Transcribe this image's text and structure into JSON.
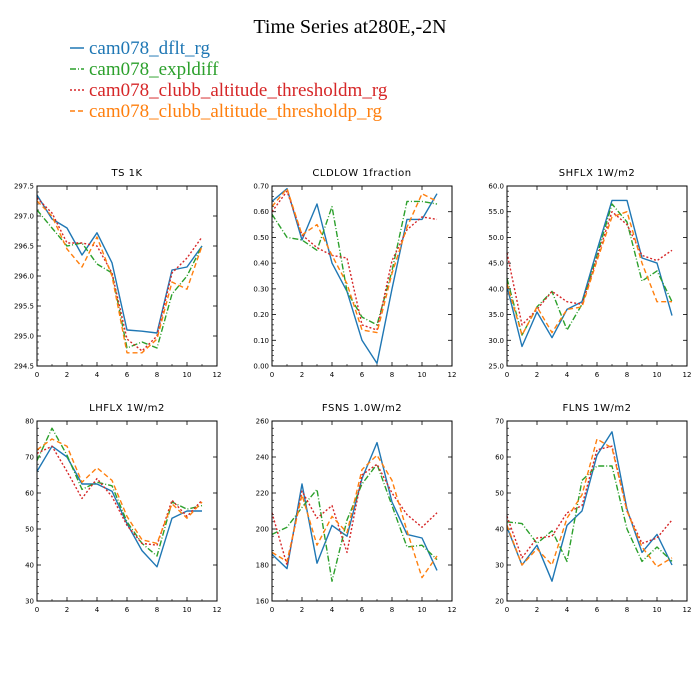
{
  "figure_title": "Time Series at280E,-2N",
  "legend": [
    {
      "label": "cam078_dflt_rg",
      "color": "#1f77b4",
      "dash": "solid"
    },
    {
      "label": "cam078_expldiff",
      "color": "#2ca02c",
      "dash": "dashdot"
    },
    {
      "label": "cam078_clubb_altitude_thresholdm_rg",
      "color": "#d62728",
      "dash": "dotted"
    },
    {
      "label": "cam078_clubb_altitude_thresholdp_rg",
      "color": "#ff7f0e",
      "dash": "dashed"
    }
  ],
  "chart_data": [
    {
      "type": "line",
      "title": "TS   1K",
      "x": [
        0,
        1,
        2,
        3,
        4,
        5,
        6,
        7,
        8,
        9,
        10,
        11
      ],
      "xlim": [
        0,
        12
      ],
      "xticks": [
        0,
        2,
        4,
        6,
        8,
        10,
        12
      ],
      "ylim": [
        294.5,
        297.5
      ],
      "yticks": [
        294.5,
        295.0,
        295.5,
        296.0,
        296.5,
        297.0,
        297.5
      ],
      "yticklabels": [
        "294.5",
        "295.0",
        "295.5",
        "296.0",
        "296.5",
        "297.0",
        "297.5"
      ],
      "series": [
        {
          "name": "cam078_dflt_rg",
          "values": [
            297.35,
            296.95,
            296.8,
            296.35,
            296.72,
            296.22,
            295.1,
            295.08,
            295.05,
            296.1,
            296.15,
            296.5
          ]
        },
        {
          "name": "cam078_expldiff",
          "values": [
            297.1,
            296.8,
            296.5,
            296.55,
            296.2,
            296.05,
            294.8,
            294.9,
            294.8,
            295.7,
            296.0,
            296.5
          ]
        },
        {
          "name": "cam078_clubb_altitude_thresholdm_rg",
          "values": [
            297.3,
            297.05,
            296.55,
            296.55,
            296.5,
            296.05,
            294.95,
            294.75,
            295.0,
            296.05,
            296.3,
            296.65
          ]
        },
        {
          "name": "cam078_clubb_altitude_thresholdp_rg",
          "values": [
            297.25,
            297.0,
            296.45,
            296.15,
            296.65,
            296.0,
            294.72,
            294.72,
            294.95,
            295.9,
            295.78,
            296.5
          ]
        }
      ]
    },
    {
      "type": "line",
      "title": "CLDLOW   1fraction",
      "x": [
        0,
        1,
        2,
        3,
        4,
        5,
        6,
        7,
        8,
        9,
        10,
        11
      ],
      "xlim": [
        0,
        12
      ],
      "xticks": [
        0,
        2,
        4,
        6,
        8,
        10,
        12
      ],
      "ylim": [
        0.0,
        0.7
      ],
      "yticks": [
        0,
        0.1,
        0.2,
        0.3,
        0.4,
        0.5,
        0.6,
        0.7
      ],
      "yticklabels": [
        "0.00",
        "0.10",
        "0.20",
        "0.30",
        "0.40",
        "0.50",
        "0.60",
        "0.70"
      ],
      "series": [
        {
          "name": "cam078_dflt_rg",
          "values": [
            0.64,
            0.69,
            0.49,
            0.63,
            0.4,
            0.29,
            0.1,
            0.01,
            0.3,
            0.57,
            0.57,
            0.67
          ]
        },
        {
          "name": "cam078_expldiff",
          "values": [
            0.59,
            0.5,
            0.49,
            0.45,
            0.62,
            0.29,
            0.19,
            0.16,
            0.37,
            0.64,
            0.64,
            0.63
          ]
        },
        {
          "name": "cam078_clubb_altitude_thresholdm_rg",
          "values": [
            0.6,
            0.68,
            0.51,
            0.46,
            0.43,
            0.42,
            0.16,
            0.14,
            0.41,
            0.53,
            0.58,
            0.57
          ]
        },
        {
          "name": "cam078_clubb_altitude_thresholdp_rg",
          "values": [
            0.62,
            0.69,
            0.51,
            0.55,
            0.43,
            0.32,
            0.14,
            0.13,
            0.36,
            0.54,
            0.67,
            0.64
          ]
        }
      ]
    },
    {
      "type": "line",
      "title": "SHFLX   1W/m2",
      "x": [
        0,
        1,
        2,
        3,
        4,
        5,
        6,
        7,
        8,
        9,
        10,
        11
      ],
      "xlim": [
        0,
        12
      ],
      "xticks": [
        0,
        2,
        4,
        6,
        8,
        10,
        12
      ],
      "ylim": [
        25.0,
        60.0
      ],
      "yticks": [
        25,
        30,
        35,
        40,
        45,
        50,
        55,
        60
      ],
      "yticklabels": [
        "25.0",
        "30.0",
        "35.0",
        "40.0",
        "45.0",
        "50.0",
        "55.0",
        "60.0"
      ],
      "series": [
        {
          "name": "cam078_dflt_rg",
          "values": [
            40.5,
            28.8,
            35.5,
            30.5,
            36.0,
            37.5,
            47.5,
            57.2,
            57.2,
            46.0,
            45.0,
            34.8
          ]
        },
        {
          "name": "cam078_expldiff",
          "values": [
            42.0,
            31.0,
            36.5,
            39.5,
            32.0,
            37.0,
            46.5,
            56.5,
            53.0,
            41.5,
            43.5,
            37.5
          ]
        },
        {
          "name": "cam078_clubb_altitude_thresholdm_rg",
          "values": [
            47.0,
            33.0,
            36.0,
            39.5,
            37.5,
            37.0,
            46.0,
            55.0,
            52.5,
            46.5,
            45.5,
            47.5
          ]
        },
        {
          "name": "cam078_clubb_altitude_thresholdp_rg",
          "values": [
            41.0,
            31.0,
            36.5,
            31.5,
            36.0,
            36.5,
            45.5,
            54.0,
            55.0,
            45.0,
            37.5,
            37.5
          ]
        }
      ]
    },
    {
      "type": "line",
      "title": "LHFLX   1W/m2",
      "x": [
        0,
        1,
        2,
        3,
        4,
        5,
        6,
        7,
        8,
        9,
        10,
        11
      ],
      "xlim": [
        0,
        12
      ],
      "xticks": [
        0,
        2,
        4,
        6,
        8,
        10,
        12
      ],
      "ylim": [
        30,
        80
      ],
      "yticks": [
        30,
        40,
        50,
        60,
        70,
        80
      ],
      "yticklabels": [
        "30",
        "40",
        "50",
        "60",
        "70",
        "80"
      ],
      "series": [
        {
          "name": "cam078_dflt_rg",
          "values": [
            66.0,
            73.0,
            70.0,
            62.5,
            62.5,
            60.5,
            51.5,
            44.0,
            39.5,
            53.0,
            55.0,
            55.0
          ]
        },
        {
          "name": "cam078_expldiff",
          "values": [
            69.0,
            78.0,
            70.5,
            61.0,
            63.0,
            62.0,
            52.0,
            46.0,
            42.5,
            57.5,
            55.5,
            56.5
          ]
        },
        {
          "name": "cam078_clubb_altitude_thresholdm_rg",
          "values": [
            71.0,
            73.0,
            66.0,
            58.5,
            64.0,
            59.0,
            51.0,
            46.0,
            45.5,
            58.0,
            53.5,
            58.0
          ]
        },
        {
          "name": "cam078_clubb_altitude_thresholdp_rg",
          "values": [
            72.0,
            75.0,
            73.0,
            63.0,
            67.0,
            63.5,
            53.5,
            47.0,
            46.0,
            57.0,
            53.0,
            57.5
          ]
        }
      ]
    },
    {
      "type": "line",
      "title": "FSNS   1.0W/m2",
      "x": [
        0,
        1,
        2,
        3,
        4,
        5,
        6,
        7,
        8,
        9,
        10,
        11
      ],
      "xlim": [
        0,
        12
      ],
      "xticks": [
        0,
        2,
        4,
        6,
        8,
        10,
        12
      ],
      "ylim": [
        160,
        260
      ],
      "yticks": [
        160,
        180,
        200,
        220,
        240,
        260
      ],
      "yticklabels": [
        "160",
        "180",
        "200",
        "220",
        "240",
        "260"
      ],
      "series": [
        {
          "name": "cam078_dflt_rg",
          "values": [
            186.0,
            178.0,
            225.0,
            181.0,
            202.0,
            196.0,
            228.0,
            248.0,
            215.0,
            197.0,
            195.0,
            177.0
          ]
        },
        {
          "name": "cam078_expldiff",
          "values": [
            197.0,
            201.0,
            212.0,
            222.0,
            171.0,
            205.0,
            225.0,
            236.0,
            213.0,
            190.0,
            191.0,
            183.0
          ]
        },
        {
          "name": "cam078_clubb_altitude_thresholdm_rg",
          "values": [
            209.0,
            180.0,
            221.0,
            206.0,
            213.0,
            187.0,
            230.0,
            236.0,
            220.0,
            208.0,
            201.0,
            209.0
          ]
        },
        {
          "name": "cam078_clubb_altitude_thresholdp_rg",
          "values": [
            187.0,
            182.0,
            219.0,
            191.0,
            207.0,
            198.0,
            233.0,
            241.0,
            227.0,
            199.0,
            173.0,
            185.0
          ]
        }
      ]
    },
    {
      "type": "line",
      "title": "FLNS   1W/m2",
      "x": [
        0,
        1,
        2,
        3,
        4,
        5,
        6,
        7,
        8,
        9,
        10,
        11
      ],
      "xlim": [
        0,
        12
      ],
      "xticks": [
        0,
        2,
        4,
        6,
        8,
        10,
        12
      ],
      "ylim": [
        20,
        70
      ],
      "yticks": [
        20,
        30,
        40,
        50,
        60,
        70
      ],
      "yticklabels": [
        "20",
        "30",
        "40",
        "50",
        "60",
        "70"
      ],
      "series": [
        {
          "name": "cam078_dflt_rg",
          "values": [
            40.5,
            30.0,
            35.5,
            25.5,
            41.0,
            45.0,
            60.5,
            67.0,
            45.5,
            33.5,
            38.5,
            30.0
          ]
        },
        {
          "name": "cam078_expldiff",
          "values": [
            42.0,
            41.5,
            36.0,
            39.5,
            31.0,
            53.5,
            57.5,
            57.5,
            40.0,
            31.0,
            35.0,
            31.0
          ]
        },
        {
          "name": "cam078_clubb_altitude_thresholdm_rg",
          "values": [
            43.5,
            32.0,
            37.5,
            38.0,
            44.5,
            46.5,
            62.0,
            63.0,
            45.0,
            36.0,
            37.5,
            42.5
          ]
        },
        {
          "name": "cam078_clubb_altitude_thresholdp_rg",
          "values": [
            41.0,
            30.0,
            34.5,
            30.0,
            43.0,
            49.5,
            65.0,
            62.5,
            45.0,
            35.0,
            29.5,
            32.0
          ]
        }
      ]
    }
  ]
}
